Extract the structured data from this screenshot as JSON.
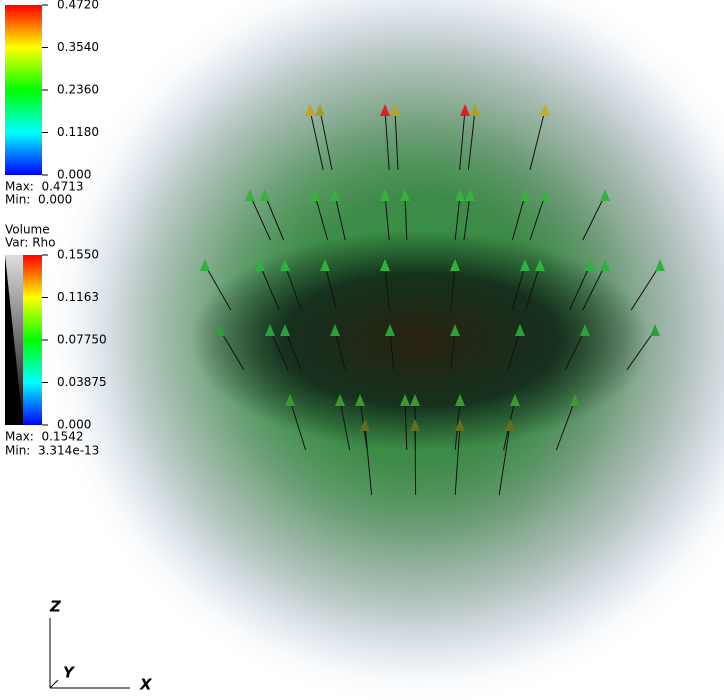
{
  "legends": [
    {
      "ticks": [
        "0.4720",
        "0.3540",
        "0.2360",
        "0.1180",
        "0.000"
      ],
      "max": "Max:  0.4713",
      "min": "Min:  0.000"
    },
    {
      "title": "Volume",
      "var": "Var: Rho",
      "ticks": [
        "0.1550",
        "0.1163",
        "0.07750",
        "0.03875",
        "0.000"
      ],
      "max": "Max:  0.1542",
      "min": "Min:  3.314e-13"
    }
  ],
  "axes": {
    "z": "Z",
    "y": "Y",
    "x": "X"
  }
}
